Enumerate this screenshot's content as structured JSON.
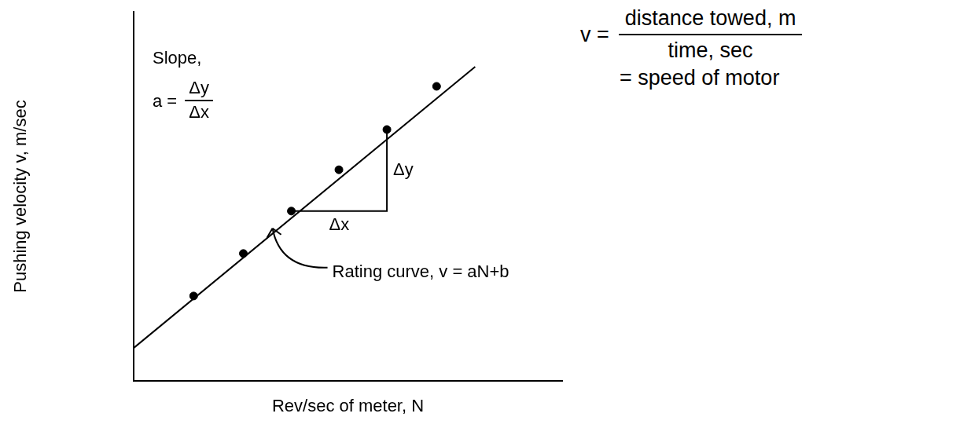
{
  "chart_data": {
    "type": "scatter",
    "x_label": "Rev/sec of meter, N",
    "y_label": "Pushing velocity v, m/sec",
    "xlim": [
      0,
      10
    ],
    "ylim": [
      0,
      10
    ],
    "grid": false,
    "tick_labels": false,
    "series": [
      {
        "type": "scatter",
        "marker": "circle",
        "color": "#000000",
        "x": [
          1.4,
          2.56,
          3.68,
          4.79,
          5.91,
          7.07
        ],
        "values": [
          2.3,
          3.45,
          4.6,
          5.72,
          6.81,
          7.98
        ]
      },
      {
        "type": "line",
        "line_style": "solid",
        "color": "#000000",
        "x": [
          0,
          7.97
        ],
        "values": [
          0.89,
          8.51
        ]
      }
    ],
    "annotations": {
      "slope": {
        "label": "Slope,",
        "formula": "a =",
        "numerator": "Δy",
        "denominator": "Δx"
      },
      "triangle": {
        "rise": "Δy",
        "run": "Δx"
      },
      "curve_label": "Rating curve, v = aN+b",
      "definition": {
        "lhs": "v =",
        "numerator": "distance towed, m",
        "denominator": "time, sec",
        "result": "= speed of motor"
      }
    }
  }
}
